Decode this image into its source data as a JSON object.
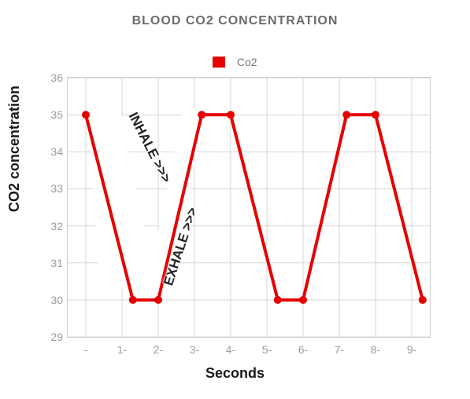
{
  "title": {
    "text": "BLOOD CO2 CONCENTRATION",
    "fontsize": 16,
    "color": "#6b6b6b"
  },
  "legend": {
    "swatch_color": "#e60000",
    "label": "Co2",
    "label_color": "#757575",
    "label_fontsize": 14
  },
  "ylabel": {
    "text": "CO2 concentration",
    "fontsize": 18,
    "color": "#1a1a1a"
  },
  "xlabel": {
    "text": "Seconds",
    "fontsize": 18,
    "color": "#1a1a1a"
  },
  "chart": {
    "type": "line",
    "background_color": "#ffffff",
    "border_color": "#cfcfcf",
    "grid_color": "#d6d6d6",
    "grid_width": 1,
    "xlim": [
      -0.5,
      9.5
    ],
    "ylim": [
      29,
      36
    ],
    "xticks": [
      0,
      1,
      2,
      3,
      4,
      5,
      6,
      7,
      8,
      9
    ],
    "xtick_labels": [
      "-",
      "1-",
      "2-",
      "3-",
      "4-",
      "5-",
      "6-",
      "7-",
      "8-",
      "9-"
    ],
    "yticks": [
      29,
      30,
      31,
      32,
      33,
      34,
      35,
      36
    ],
    "tick_color": "#9c9c9c",
    "tick_fontsize": 14,
    "series": {
      "color": "#e60000",
      "line_width": 4,
      "marker": "circle",
      "marker_radius": 5,
      "x": [
        0,
        1.3,
        2.0,
        3.2,
        4.0,
        5.3,
        6.0,
        7.2,
        8.0,
        9.3
      ],
      "y": [
        35,
        30,
        30,
        35,
        35,
        30,
        30,
        35,
        35,
        30
      ]
    },
    "inhale_band": {
      "points_x": [
        0.05,
        0.95,
        1.95,
        0.4
      ],
      "points_y": [
        35.4,
        35.2,
        30.3,
        30.3
      ],
      "fill": "#ffffff"
    },
    "exhale_band": {
      "points_x": [
        1.7,
        2.7,
        3.3,
        2.25
      ],
      "points_y": [
        30.45,
        35.2,
        35.1,
        30.0
      ],
      "fill": "#ffffff"
    }
  },
  "annotations": {
    "inhale": {
      "text": "INHALE >>>",
      "rotation_deg": 63,
      "fontsize": 17,
      "left_pct": 12,
      "top_pct": 24
    },
    "exhale": {
      "text": "EXHALE >>>",
      "rotation_deg": -72,
      "fontsize": 17,
      "left_pct": 20,
      "top_pct": 62
    }
  }
}
